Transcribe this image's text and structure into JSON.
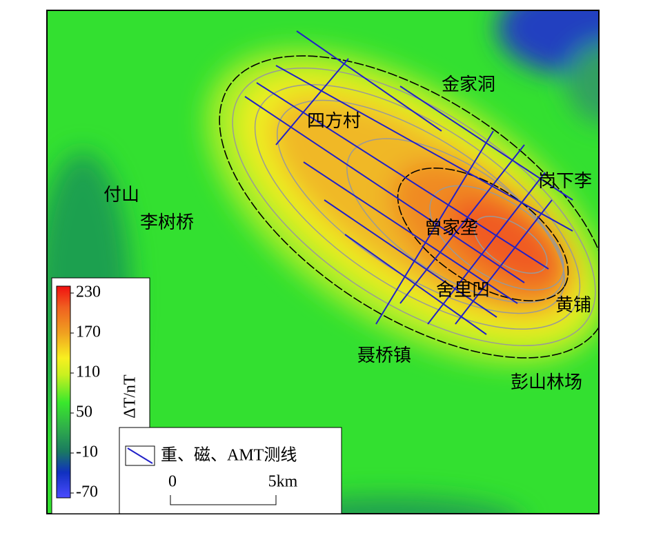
{
  "places": [
    "金家洞",
    "四方村",
    "岗下李",
    "付山",
    "李树桥",
    "曾家垄",
    "舍里凹",
    "黄铺",
    "聂桥镇",
    "彭山林场"
  ],
  "colorbar": {
    "label": "ΔT/nT",
    "range": [
      -70,
      230
    ],
    "ticks": [
      230,
      170,
      110,
      50,
      -10,
      -70
    ]
  },
  "legend": {
    "label": "重、磁、AMT测线"
  },
  "scale_bar": {
    "start": "0",
    "end": "5km"
  }
}
